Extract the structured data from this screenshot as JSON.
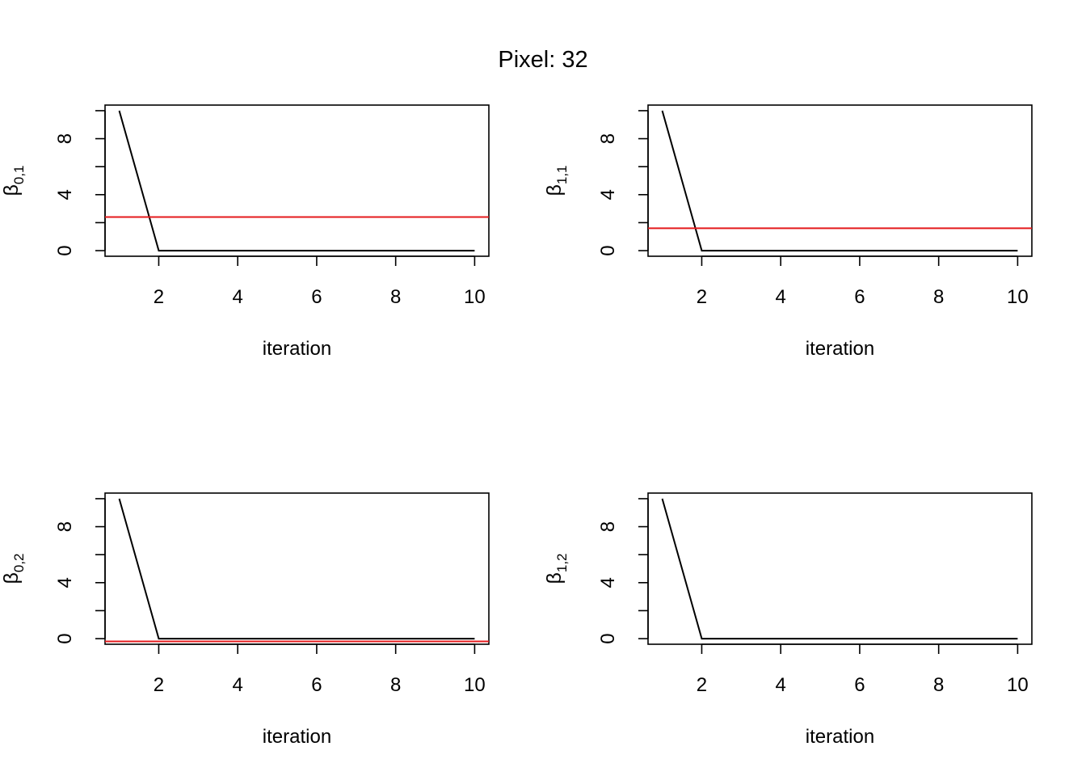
{
  "figure": {
    "title": "Pixel:  32"
  },
  "chart_data": [
    {
      "type": "line",
      "ylabel_base": "β",
      "ylabel_sub": "0,1",
      "xlabel": "iteration",
      "x": [
        1,
        2,
        3,
        4,
        5,
        6,
        7,
        8,
        9,
        10
      ],
      "series": [
        {
          "values": [
            10,
            0,
            0,
            0,
            0,
            0,
            0,
            0,
            0,
            0
          ],
          "color": "#000000"
        }
      ],
      "reference_line": {
        "y": 2.4,
        "color": "#e41a1c"
      },
      "xlim": [
        0.64,
        10.36
      ],
      "ylim": [
        -0.4,
        10.4
      ],
      "xticks": [
        "2",
        "4",
        "6",
        "8",
        "10"
      ],
      "yticks": [
        "0",
        "4",
        "8"
      ],
      "grid": false
    },
    {
      "type": "line",
      "ylabel_base": "β",
      "ylabel_sub": "1,1",
      "xlabel": "iteration",
      "x": [
        1,
        2,
        3,
        4,
        5,
        6,
        7,
        8,
        9,
        10
      ],
      "series": [
        {
          "values": [
            10,
            0,
            0,
            0,
            0,
            0,
            0,
            0,
            0,
            0
          ],
          "color": "#000000"
        }
      ],
      "reference_line": {
        "y": 1.6,
        "color": "#e41a1c"
      },
      "xlim": [
        0.64,
        10.36
      ],
      "ylim": [
        -0.4,
        10.4
      ],
      "xticks": [
        "2",
        "4",
        "6",
        "8",
        "10"
      ],
      "yticks": [
        "0",
        "4",
        "8"
      ],
      "grid": false
    },
    {
      "type": "line",
      "ylabel_base": "β",
      "ylabel_sub": "0,2",
      "xlabel": "iteration",
      "x": [
        1,
        2,
        3,
        4,
        5,
        6,
        7,
        8,
        9,
        10
      ],
      "series": [
        {
          "values": [
            10,
            0,
            0,
            0,
            0,
            0,
            0,
            0,
            0,
            0
          ],
          "color": "#000000"
        }
      ],
      "reference_line": {
        "y": -0.2,
        "color": "#e41a1c"
      },
      "xlim": [
        0.64,
        10.36
      ],
      "ylim": [
        -0.4,
        10.4
      ],
      "xticks": [
        "2",
        "4",
        "6",
        "8",
        "10"
      ],
      "yticks": [
        "0",
        "4",
        "8"
      ],
      "grid": false
    },
    {
      "type": "line",
      "ylabel_base": "β",
      "ylabel_sub": "1,2",
      "xlabel": "iteration",
      "x": [
        1,
        2,
        3,
        4,
        5,
        6,
        7,
        8,
        9,
        10
      ],
      "series": [
        {
          "values": [
            10,
            0,
            0,
            0,
            0,
            0,
            0,
            0,
            0,
            0
          ],
          "color": "#000000"
        }
      ],
      "reference_line": null,
      "xlim": [
        0.64,
        10.36
      ],
      "ylim": [
        -0.4,
        10.4
      ],
      "xticks": [
        "2",
        "4",
        "6",
        "8",
        "10"
      ],
      "yticks": [
        "0",
        "4",
        "8"
      ],
      "grid": false
    }
  ]
}
